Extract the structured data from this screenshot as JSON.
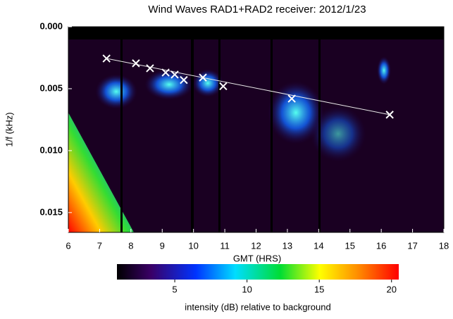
{
  "chart_data": {
    "type": "scatter",
    "title": "Wind Waves RAD1+RAD2 receiver: 2012/1/23",
    "xlabel": "GMT (HRS)",
    "ylabel": "1/f (kHz)",
    "x": [
      7.22,
      8.16,
      8.61,
      9.11,
      9.4,
      9.69,
      10.3,
      10.95,
      13.14,
      16.27
    ],
    "values": [
      0.00256,
      0.00295,
      0.00335,
      0.0037,
      0.00386,
      0.0043,
      0.0041,
      0.0048,
      0.0058,
      0.0071
    ],
    "marker_color": "#ffffff",
    "fit_line": {
      "x": [
        7.22,
        16.27
      ],
      "values": [
        0.00256,
        0.0071
      ],
      "color": "#e8e8e8"
    },
    "xlim": [
      6,
      18
    ],
    "xticks": [
      6,
      7,
      8,
      9,
      10,
      11,
      12,
      13,
      14,
      15,
      16,
      17,
      18
    ],
    "ylim": [
      0,
      0.0166
    ],
    "y_inverted": true,
    "yticks": [
      {
        "value": 0,
        "label": "0.000"
      },
      {
        "value": 0.005,
        "label": "0.005"
      },
      {
        "value": 0.01,
        "label": "0.010"
      },
      {
        "value": 0.015,
        "label": "0.015"
      }
    ],
    "colorbar": {
      "label": "intensity (dB) relative to background",
      "lim": [
        1,
        20.5
      ],
      "ticks": [
        5,
        10,
        15,
        20
      ]
    }
  }
}
